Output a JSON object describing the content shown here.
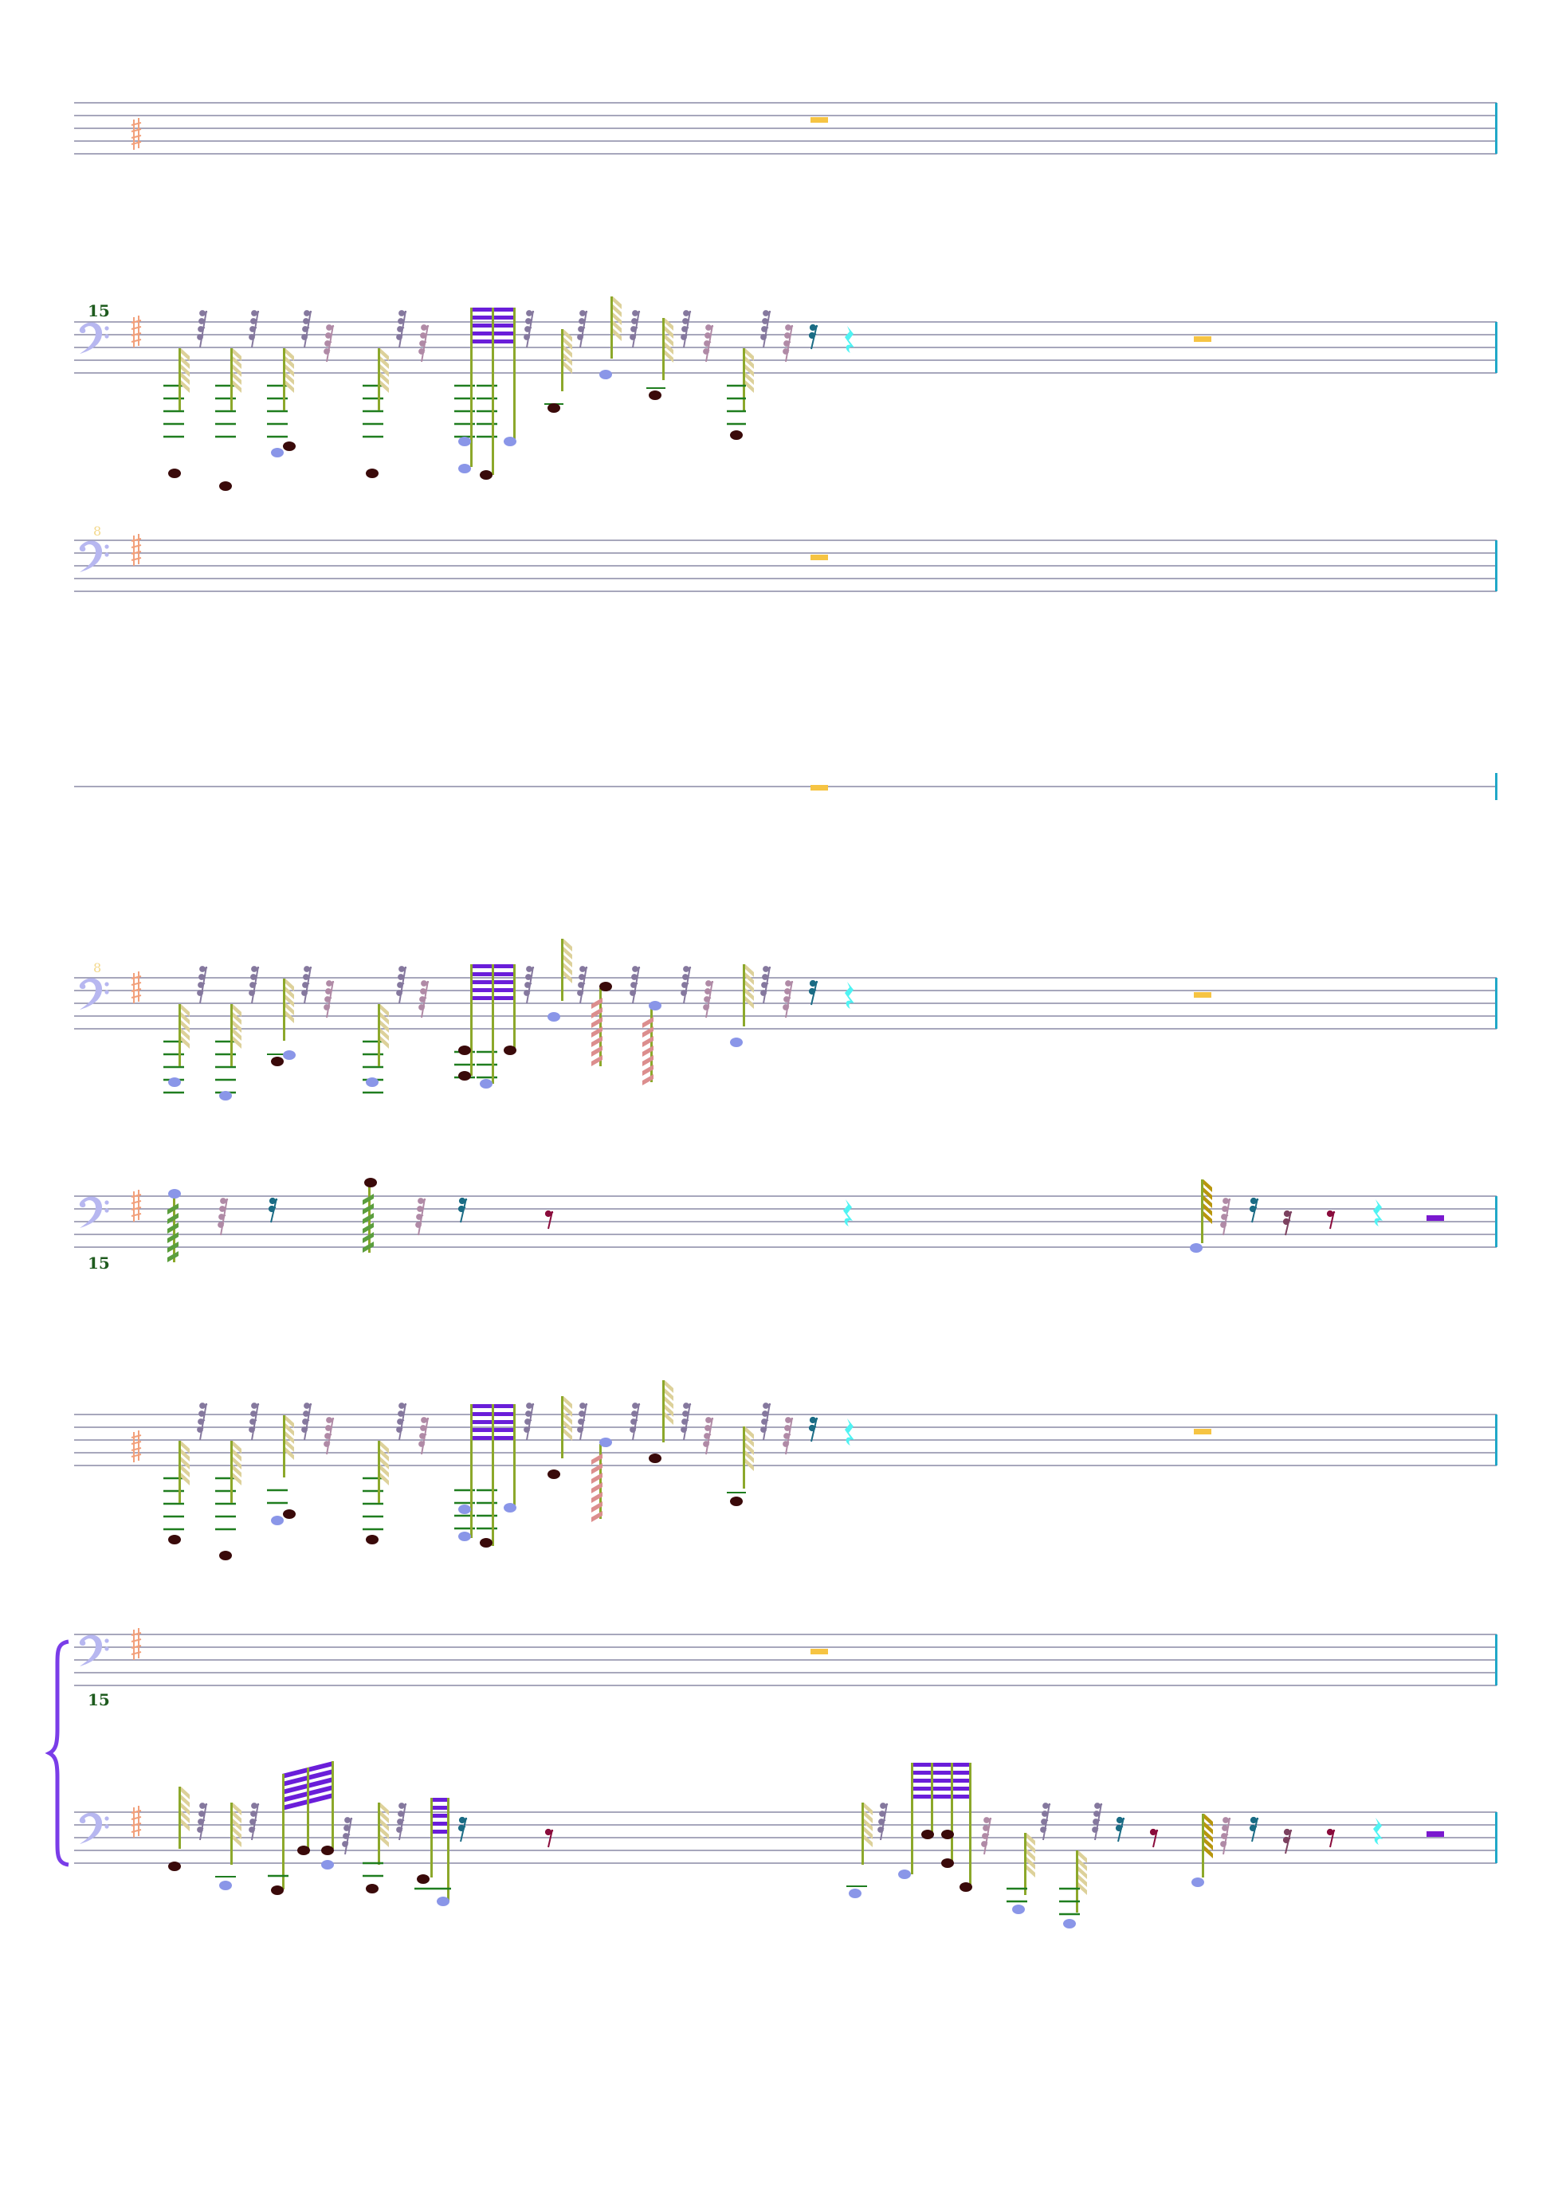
{
  "palette": {
    "staff_line": "#8a8aa6",
    "barline": "#21a8c8",
    "clef": "#b7b7f0",
    "accidental": "#f2a07b",
    "whole_rest": "#f6c443",
    "ledger": "#1f7d1f",
    "stem": "#8ca82b",
    "beam_purple": "#6a1ed9",
    "flag_khaki": "#ddd19a",
    "rest_gray": "#85789e",
    "rest_mauve": "#b08aa6",
    "rest_teal": "#1b6c85",
    "rest_cyan": "#4ff3f3",
    "rest_maroon": "#8a0c3c",
    "rest_plum": "#7c4260",
    "note_dark": "#3a0a0a",
    "note_blue": "#8a96e8",
    "tremolo_pink": "#dc8e8e",
    "tremolo_green": "#5b9e3e",
    "flag_gold": "#b8960d",
    "half_rest": "#7a19cf",
    "brace": "#7a3de8"
  },
  "systems": [
    {
      "id": "system-1",
      "number": "",
      "number_pos": "",
      "content": "empty"
    },
    {
      "id": "system-2",
      "number": "15",
      "number_pos": "above",
      "content": "dense"
    },
    {
      "id": "system-3",
      "number": "8",
      "number_pos": "above-pale",
      "content": "empty"
    },
    {
      "id": "system-4",
      "number": "",
      "number_pos": "",
      "content": "line-only"
    },
    {
      "id": "system-5",
      "number": "8",
      "number_pos": "above-pale",
      "content": "dense-var"
    },
    {
      "id": "system-6",
      "number": "15",
      "number_pos": "below",
      "content": "sparse"
    },
    {
      "id": "system-7",
      "number": "",
      "number_pos": "",
      "content": "dense"
    },
    {
      "id": "system-8",
      "number": "15",
      "number_pos": "below",
      "content": "empty"
    },
    {
      "id": "system-9",
      "number": "",
      "number_pos": "",
      "content": "bottom"
    }
  ]
}
